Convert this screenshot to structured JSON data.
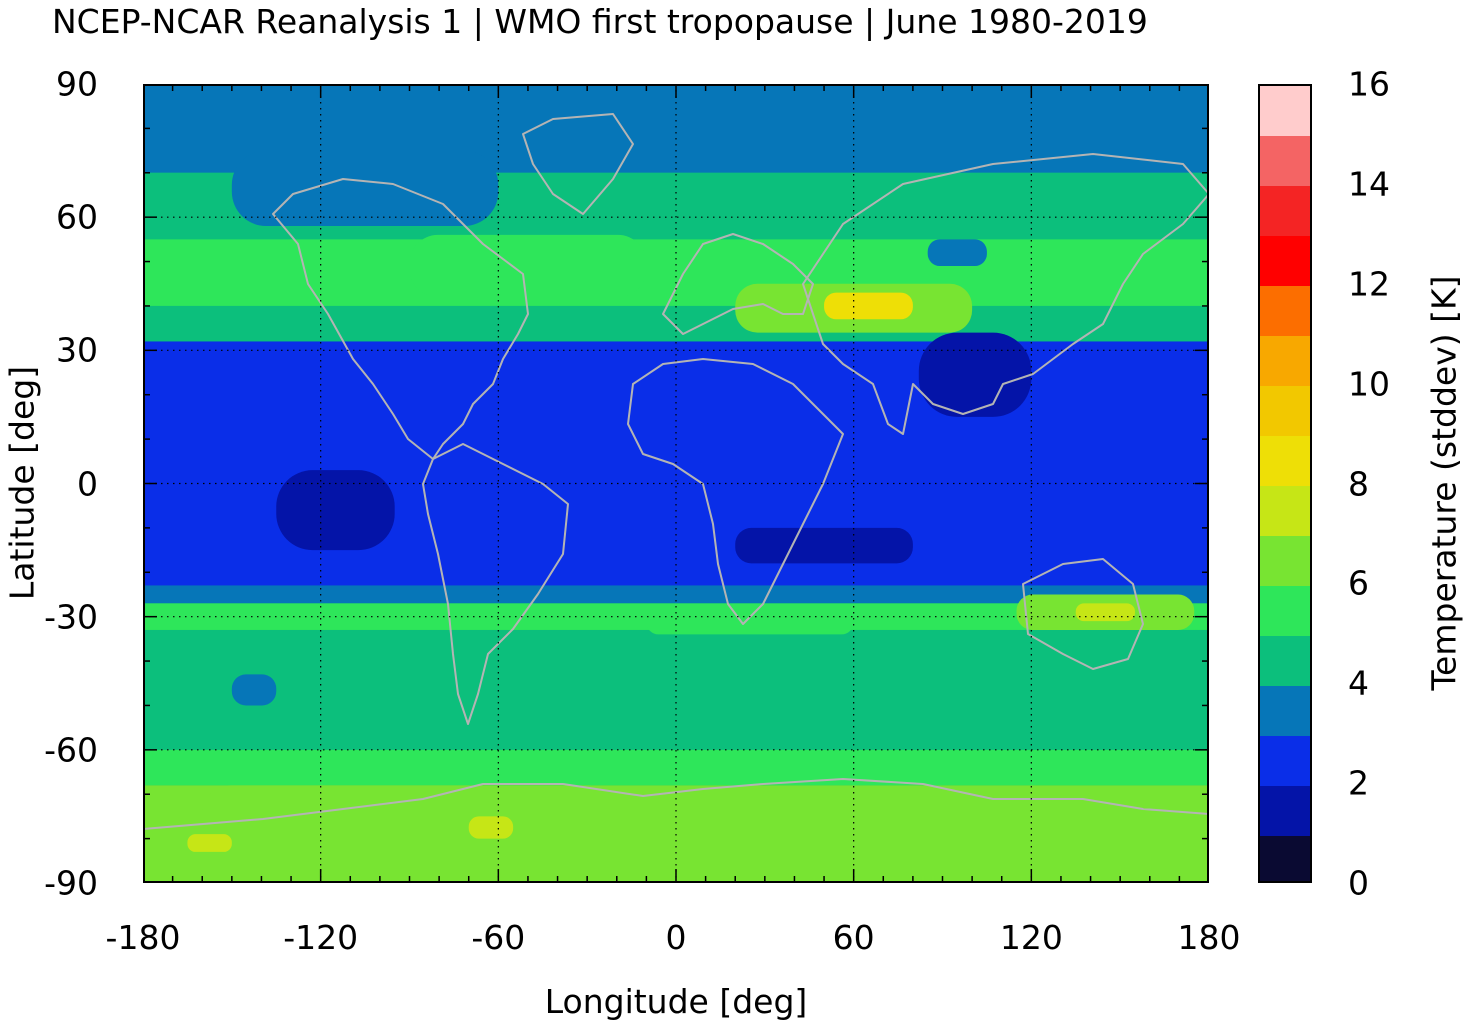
{
  "title": "NCEP-NCAR Reanalysis 1 | WMO first tropopause | June 1980-2019",
  "map": {
    "xlabel": "Longitude [deg]",
    "ylabel": "Latitude [deg]",
    "xlim": [
      -180,
      180
    ],
    "ylim": [
      -90,
      90
    ],
    "xticks": [
      "-180",
      "-120",
      "-60",
      "0",
      "60",
      "120",
      "180"
    ],
    "yticks": [
      "90",
      "60",
      "30",
      "0",
      "-30",
      "-60",
      "-90"
    ],
    "grid": true,
    "coastline_color": "#b4b4b4"
  },
  "colorbar": {
    "label": "Temperature (stddev) [K]",
    "range": [
      0,
      16
    ],
    "ticks": [
      "0",
      "2",
      "4",
      "6",
      "8",
      "10",
      "12",
      "14",
      "16"
    ],
    "levels": [
      {
        "from": 0,
        "to": 1,
        "color": "#0a0a32"
      },
      {
        "from": 1,
        "to": 2,
        "color": "#0414a8"
      },
      {
        "from": 2,
        "to": 3,
        "color": "#0a2ee8"
      },
      {
        "from": 3,
        "to": 4,
        "color": "#0676b8"
      },
      {
        "from": 4,
        "to": 5,
        "color": "#0cbf7c"
      },
      {
        "from": 5,
        "to": 6,
        "color": "#2ee65a"
      },
      {
        "from": 6,
        "to": 7,
        "color": "#78e432"
      },
      {
        "from": 7,
        "to": 8,
        "color": "#c6e616"
      },
      {
        "from": 8,
        "to": 9,
        "color": "#eedf06"
      },
      {
        "from": 9,
        "to": 10,
        "color": "#f2c800"
      },
      {
        "from": 10,
        "to": 11,
        "color": "#f8a800"
      },
      {
        "from": 11,
        "to": 12,
        "color": "#fc6e00"
      },
      {
        "from": 12,
        "to": 13,
        "color": "#ff0000"
      },
      {
        "from": 13,
        "to": 14,
        "color": "#f42424"
      },
      {
        "from": 14,
        "to": 15,
        "color": "#f46464"
      },
      {
        "from": 15,
        "to": 16,
        "color": "#ffcccc"
      }
    ]
  },
  "chart_data": {
    "type": "heatmap",
    "variable": "Temperature (stddev) [K]",
    "bands_lat": [
      {
        "lat_from": 90,
        "lat_to": 70,
        "value": 3.5
      },
      {
        "lat_from": 70,
        "lat_to": 55,
        "value": 4.5
      },
      {
        "lat_from": 55,
        "lat_to": 40,
        "value": 5.5
      },
      {
        "lat_from": 40,
        "lat_to": 32,
        "value": 4.5
      },
      {
        "lat_from": 32,
        "lat_to": -23,
        "value": 2.5
      },
      {
        "lat_from": -23,
        "lat_to": -27,
        "value": 3.5
      },
      {
        "lat_from": -27,
        "lat_to": -33,
        "value": 5.5
      },
      {
        "lat_from": -33,
        "lat_to": -60,
        "value": 4.5
      },
      {
        "lat_from": -60,
        "lat_to": -68,
        "value": 5.5
      },
      {
        "lat_from": -68,
        "lat_to": -90,
        "value": 6.5
      }
    ],
    "features": [
      {
        "lon": [
          -150,
          -60
        ],
        "lat": [
          75,
          58
        ],
        "value": 3.5
      },
      {
        "lon": [
          -90,
          -10
        ],
        "lat": [
          56,
          42
        ],
        "value": 5.5
      },
      {
        "lon": [
          20,
          100
        ],
        "lat": [
          45,
          34
        ],
        "value": 6.5
      },
      {
        "lon": [
          50,
          80
        ],
        "lat": [
          43,
          37
        ],
        "value": 8.5
      },
      {
        "lon": [
          82,
          120
        ],
        "lat": [
          34,
          15
        ],
        "value": 1.5
      },
      {
        "lon": [
          -135,
          -95
        ],
        "lat": [
          3,
          -15
        ],
        "value": 1.5
      },
      {
        "lon": [
          20,
          80
        ],
        "lat": [
          -10,
          -18
        ],
        "value": 1.5
      },
      {
        "lon": [
          115,
          175
        ],
        "lat": [
          -25,
          -33
        ],
        "value": 6.5
      },
      {
        "lon": [
          135,
          155
        ],
        "lat": [
          -27,
          -31
        ],
        "value": 7.5
      },
      {
        "lon": [
          -160,
          -20
        ],
        "lat": [
          -68,
          -82
        ],
        "value": 6.5
      },
      {
        "lon": [
          -70,
          -55
        ],
        "lat": [
          -75,
          -80
        ],
        "value": 7.5
      },
      {
        "lon": [
          -165,
          -150
        ],
        "lat": [
          -79,
          -83
        ],
        "value": 7.5
      },
      {
        "lon": [
          -150,
          -135
        ],
        "lat": [
          -43,
          -50
        ],
        "value": 3.5
      },
      {
        "lon": [
          85,
          105
        ],
        "lat": [
          55,
          49
        ],
        "value": 3.5
      },
      {
        "lon": [
          -10,
          60
        ],
        "lat": [
          -28,
          -34
        ],
        "value": 5.5
      }
    ]
  }
}
